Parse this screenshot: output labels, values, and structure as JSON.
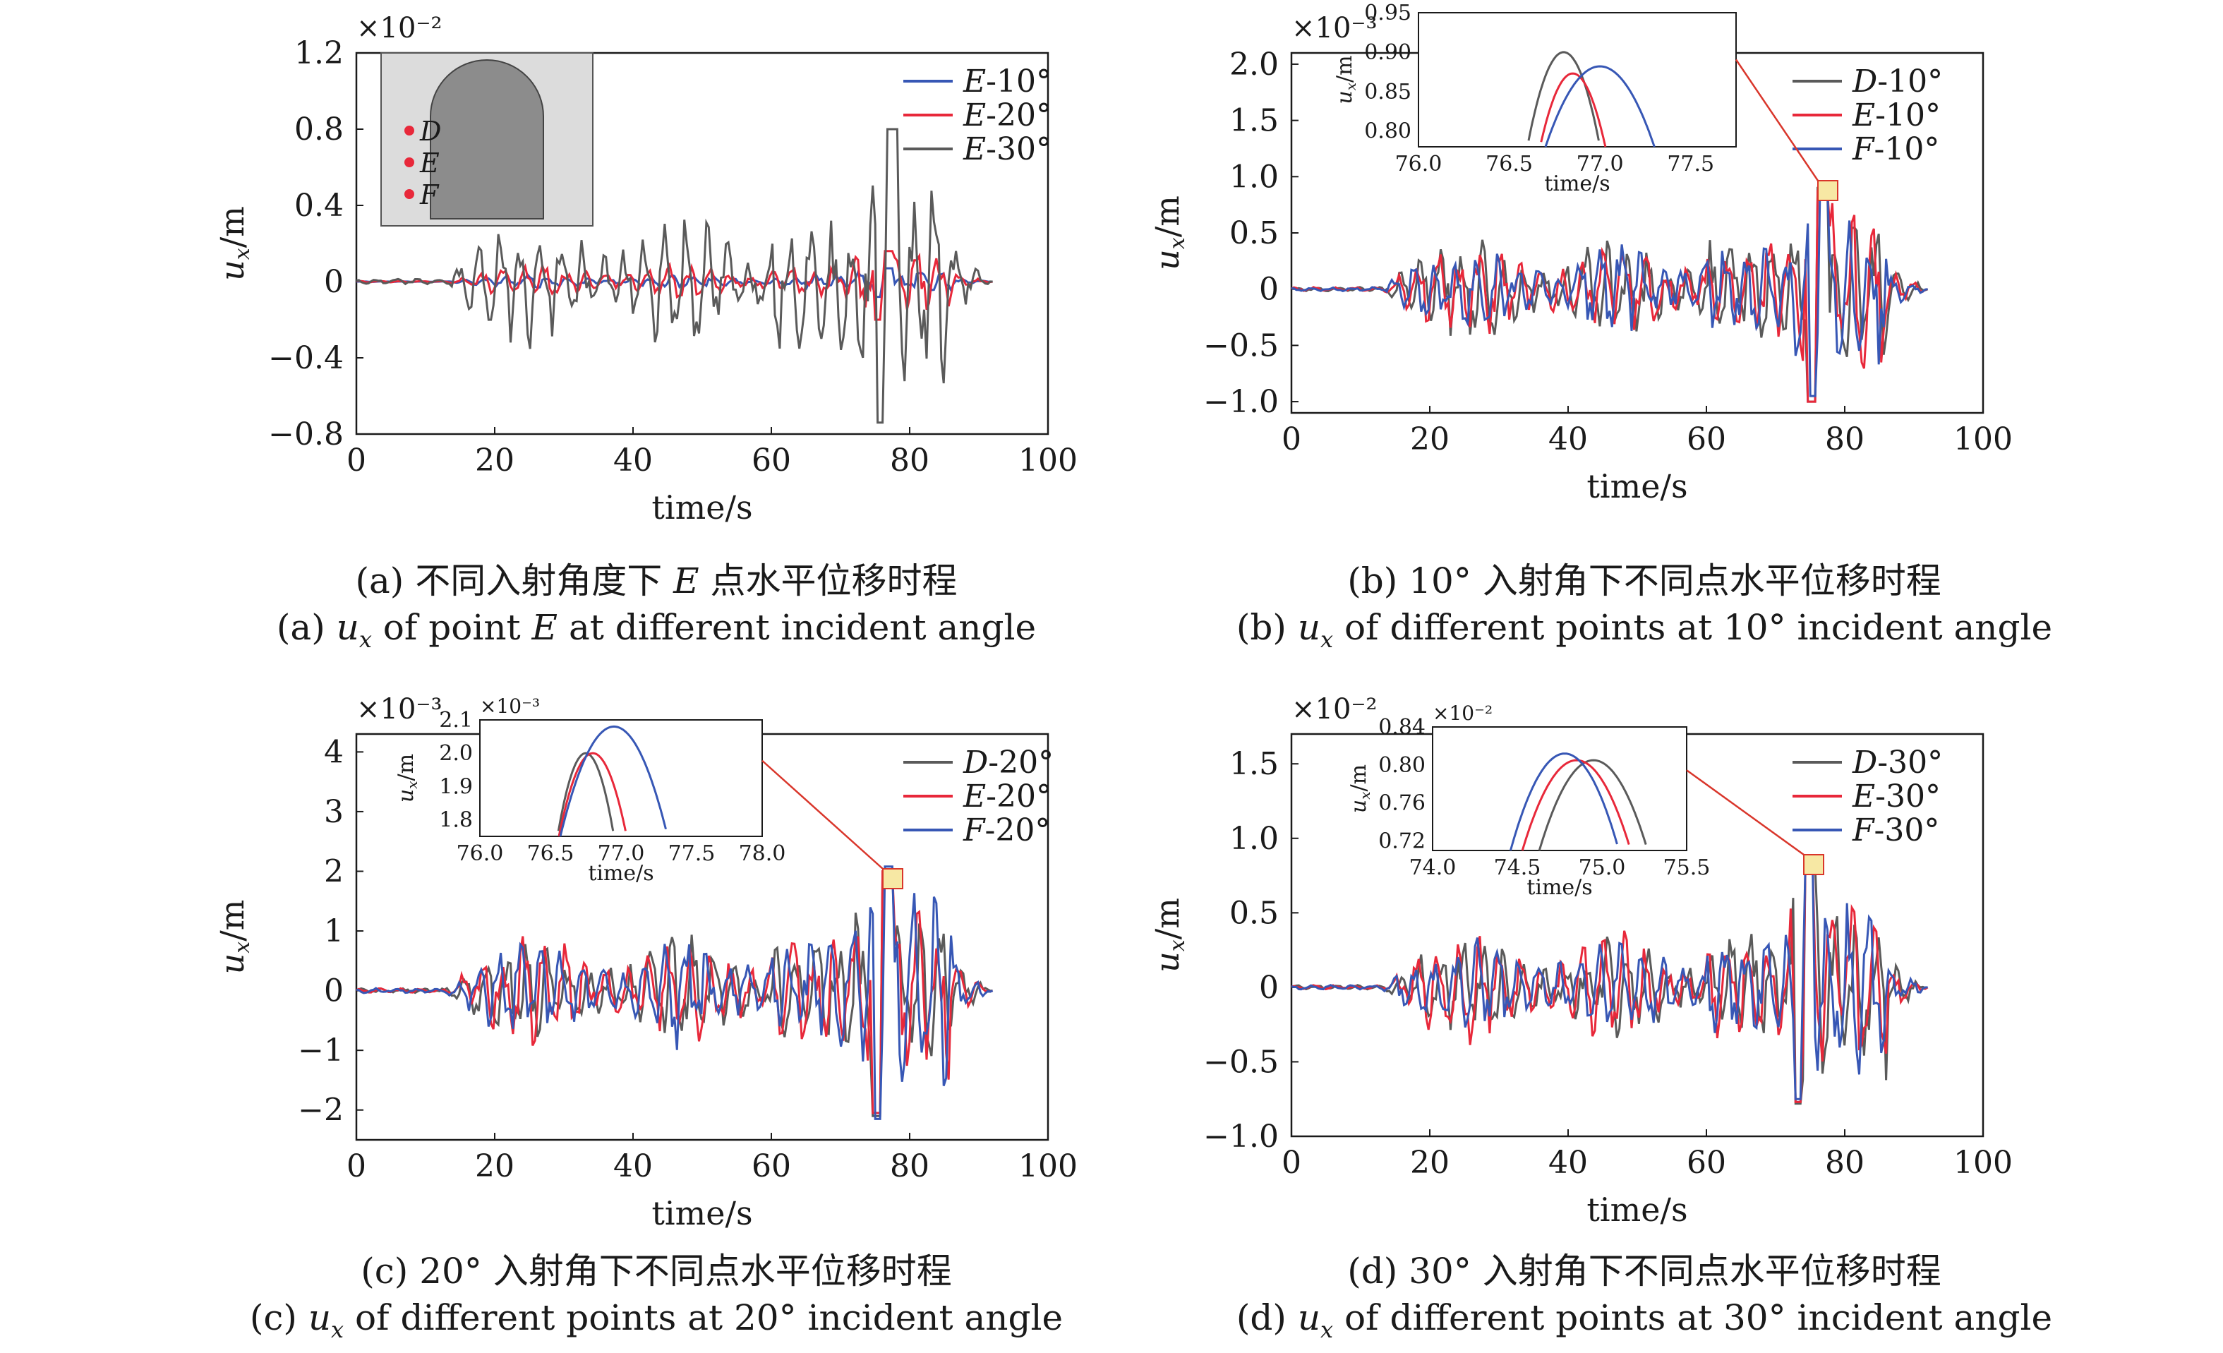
{
  "colors": {
    "gray": "#5a5a5a",
    "red": "#e8283a",
    "blue": "#3757b5",
    "callout": "#d9362b",
    "marker_fill": "#f7e8a4"
  },
  "captions": [
    {
      "cn_pre": "(a) 不同入射角度下 ",
      "cn_em": "E",
      "cn_post": " 点水平位移时程",
      "en_pre": "(a) ",
      "en_u": "u",
      "en_sub": "x",
      "en_mid": " of point ",
      "en_em": "E",
      "en_post": " at different incident angle"
    },
    {
      "cn_pre": "(b) 10° 入射角下不同点水平位移时程",
      "cn_em": "",
      "cn_post": "",
      "en_pre": "(b) ",
      "en_u": "u",
      "en_sub": "x",
      "en_mid": " of different points at 10° incident angle",
      "en_em": "",
      "en_post": ""
    },
    {
      "cn_pre": "(c) 20° 入射角下不同点水平位移时程",
      "cn_em": "",
      "cn_post": "",
      "en_pre": "(c) ",
      "en_u": "u",
      "en_sub": "x",
      "en_mid": " of different points at 20° incident angle",
      "en_em": "",
      "en_post": ""
    },
    {
      "cn_pre": "(d) 30° 入射角下不同点水平位移时程",
      "cn_em": "",
      "cn_post": "",
      "en_pre": "(d) ",
      "en_u": "u",
      "en_sub": "x",
      "en_mid": " of different points at 30° incident angle",
      "en_em": "",
      "en_post": ""
    }
  ],
  "chart_data": [
    {
      "type": "line",
      "panel": "a",
      "xlabel": "time/s",
      "ylabel": "u_x/m",
      "ylabel_main": "u",
      "ylabel_sub": "x",
      "ylabel_unit": "/m",
      "multiplier": "×10⁻²",
      "xlim": [
        0,
        100
      ],
      "ylim": [
        -0.8,
        1.2
      ],
      "xticks": [
        0,
        20,
        40,
        60,
        80,
        100
      ],
      "xtick_labels": [
        "0",
        "20",
        "40",
        "60",
        "80",
        "100"
      ],
      "yticks": [
        -0.8,
        -0.4,
        0,
        0.4,
        0.8,
        1.2
      ],
      "ytick_labels": [
        "−0.8",
        "−0.4",
        "0",
        "0.4",
        "0.8",
        "1.2"
      ],
      "legend_position": "top-right",
      "inset_image_labels": [
        "D",
        "E",
        "F"
      ],
      "series": [
        {
          "name": "E-10°",
          "name_pt": "E",
          "name_angle": "-10°",
          "color": "#3757b5",
          "peak_time": 77.0,
          "peak_value": 0.07,
          "min_value": -0.08
        },
        {
          "name": "E-20°",
          "name_pt": "E",
          "name_angle": "-20°",
          "color": "#e8283a",
          "peak_time": 77.0,
          "peak_value": 0.16,
          "min_value": -0.2
        },
        {
          "name": "E-30°",
          "name_pt": "E",
          "name_angle": "-30°",
          "color": "#5a5a5a",
          "peak_time": 77.4,
          "peak_value": 0.8,
          "min_value": -0.74
        }
      ]
    },
    {
      "type": "line",
      "panel": "b",
      "xlabel": "time/s",
      "ylabel": "u_x/m",
      "ylabel_main": "u",
      "ylabel_sub": "x",
      "ylabel_unit": "/m",
      "multiplier": "×10⁻³",
      "xlim": [
        0,
        100
      ],
      "ylim": [
        -1.1,
        2.1
      ],
      "xticks": [
        0,
        20,
        40,
        60,
        80,
        100
      ],
      "xtick_labels": [
        "0",
        "20",
        "40",
        "60",
        "80",
        "100"
      ],
      "yticks": [
        -1.0,
        -0.5,
        0,
        0.5,
        1.0,
        1.5,
        2.0
      ],
      "ytick_labels": [
        "−1.0",
        "−0.5",
        "0",
        "0.5",
        "1.0",
        "1.5",
        "2.0"
      ],
      "legend_position": "top-right",
      "series": [
        {
          "name": "D-10°",
          "name_pt": "D",
          "name_angle": "-10°",
          "color": "#5a5a5a",
          "peak_time": 76.8,
          "peak_value": 0.9,
          "min_value": -1.0
        },
        {
          "name": "E-10°",
          "name_pt": "E",
          "name_angle": "-10°",
          "color": "#e8283a",
          "peak_time": 76.85,
          "peak_value": 0.873,
          "min_value": -1.0
        },
        {
          "name": "F-10°",
          "name_pt": "F",
          "name_angle": "-10°",
          "color": "#3757b5",
          "peak_time": 77.0,
          "peak_value": 0.882,
          "min_value": -0.95
        }
      ],
      "inset": {
        "xlim": [
          76.0,
          77.75
        ],
        "ylim": [
          0.78,
          0.95
        ],
        "xticks": [
          76.0,
          76.5,
          77.0,
          77.5
        ],
        "xtick_labels": [
          "76.0",
          "76.5",
          "77.0",
          "77.5"
        ],
        "yticks": [
          0.8,
          0.85,
          0.9,
          0.95
        ],
        "ytick_labels": [
          "0.80",
          "0.85",
          "0.90",
          "0.95"
        ],
        "xlabel": "time/s",
        "ylabel": "u_x/m",
        "multiplier": "",
        "half_width": [
          0.2,
          0.18,
          0.3
        ]
      }
    },
    {
      "type": "line",
      "panel": "c",
      "xlabel": "time/s",
      "ylabel": "u_x/m",
      "ylabel_main": "u",
      "ylabel_sub": "x",
      "ylabel_unit": "/m",
      "multiplier": "×10⁻³",
      "xlim": [
        0,
        100
      ],
      "ylim": [
        -2.5,
        4.3
      ],
      "xticks": [
        0,
        20,
        40,
        60,
        80,
        100
      ],
      "xtick_labels": [
        "0",
        "20",
        "40",
        "60",
        "80",
        "100"
      ],
      "yticks": [
        -2,
        -1,
        0,
        1,
        2,
        3,
        4
      ],
      "ytick_labels": [
        "−2",
        "−1",
        "0",
        "1",
        "2",
        "3",
        "4"
      ],
      "legend_position": "top-right",
      "series": [
        {
          "name": "D-20°",
          "name_pt": "D",
          "name_angle": "-20°",
          "color": "#5a5a5a",
          "peak_time": 76.75,
          "peak_value": 2.0,
          "min_value": -2.1
        },
        {
          "name": "E-20°",
          "name_pt": "E",
          "name_angle": "-20°",
          "color": "#e8283a",
          "peak_time": 76.8,
          "peak_value": 2.0,
          "min_value": -2.05
        },
        {
          "name": "F-20°",
          "name_pt": "F",
          "name_angle": "-20°",
          "color": "#3757b5",
          "peak_time": 76.95,
          "peak_value": 2.08,
          "min_value": -2.15
        }
      ],
      "inset": {
        "xlim": [
          76.0,
          78.0
        ],
        "ylim": [
          1.75,
          2.1
        ],
        "xticks": [
          76.0,
          76.5,
          77.0,
          77.5,
          78.0
        ],
        "xtick_labels": [
          "76.0",
          "76.5",
          "77.0",
          "77.5",
          "78.0"
        ],
        "yticks": [
          1.8,
          1.9,
          2.0,
          2.1
        ],
        "ytick_labels": [
          "1.8",
          "1.9",
          "2.0",
          "2.1"
        ],
        "xlabel": "time/s",
        "ylabel": "u_x/m",
        "multiplier": "×10⁻³",
        "half_width": [
          0.2,
          0.24,
          0.38
        ]
      }
    },
    {
      "type": "line",
      "panel": "d",
      "xlabel": "time/s",
      "ylabel": "u_x/m",
      "ylabel_main": "u",
      "ylabel_sub": "x",
      "ylabel_unit": "/m",
      "multiplier": "×10⁻²",
      "xlim": [
        0,
        100
      ],
      "ylim": [
        -1.0,
        1.7
      ],
      "xticks": [
        0,
        20,
        40,
        60,
        80,
        100
      ],
      "xtick_labels": [
        "0",
        "20",
        "40",
        "60",
        "80",
        "100"
      ],
      "yticks": [
        -1.0,
        -0.5,
        0,
        0.5,
        1.0,
        1.5
      ],
      "ytick_labels": [
        "−1.0",
        "−0.5",
        "0",
        "0.5",
        "1.0",
        "1.5"
      ],
      "legend_position": "top-right",
      "series": [
        {
          "name": "D-30°",
          "name_pt": "D",
          "name_angle": "-30°",
          "color": "#5a5a5a",
          "peak_time": 74.95,
          "peak_value": 0.805,
          "min_value": -0.78
        },
        {
          "name": "E-30°",
          "name_pt": "E",
          "name_angle": "-30°",
          "color": "#e8283a",
          "peak_time": 74.85,
          "peak_value": 0.805,
          "min_value": -0.77
        },
        {
          "name": "F-30°",
          "name_pt": "F",
          "name_angle": "-30°",
          "color": "#3757b5",
          "peak_time": 74.78,
          "peak_value": 0.812,
          "min_value": -0.75
        }
      ],
      "inset": {
        "xlim": [
          74.0,
          75.5
        ],
        "ylim": [
          0.71,
          0.84
        ],
        "xticks": [
          74.0,
          74.5,
          75.0,
          75.5
        ],
        "xtick_labels": [
          "74.0",
          "74.5",
          "75.0",
          "75.5"
        ],
        "yticks": [
          0.72,
          0.76,
          0.8,
          0.84
        ],
        "ytick_labels": [
          "0.72",
          "0.76",
          "0.80",
          "0.84"
        ],
        "xlabel": "time/s",
        "ylabel": "u_x/m",
        "multiplier": "×10⁻²",
        "half_width": [
          0.32,
          0.32,
          0.32
        ]
      }
    }
  ]
}
